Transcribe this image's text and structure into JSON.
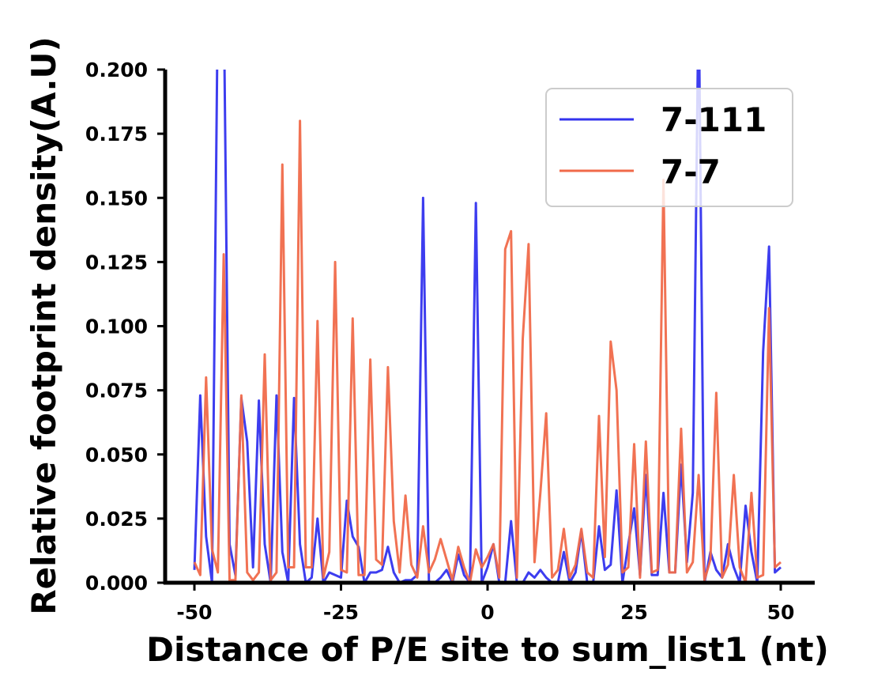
{
  "chart_data": {
    "type": "line",
    "title": "",
    "xlabel": "Distance of P/E site to sum_list1 (nt)",
    "ylabel": "Relative footprint density(A.U)",
    "xlim": [
      -55,
      55
    ],
    "ylim": [
      0,
      0.2
    ],
    "xticks": [
      -50,
      -25,
      0,
      25,
      50
    ],
    "xtick_labels": [
      "-50",
      "-25",
      "0",
      "25",
      "50"
    ],
    "yticks": [
      0,
      0.025,
      0.05,
      0.075,
      0.1,
      0.125,
      0.15,
      0.175,
      0.2
    ],
    "ytick_labels": [
      "0.000",
      "0.025",
      "0.050",
      "0.075",
      "0.100",
      "0.125",
      "0.150",
      "0.175",
      "0.200"
    ],
    "grid": false,
    "legend_position": "top-right",
    "x": [
      -50,
      -49,
      -48,
      -47,
      -46,
      -45,
      -44,
      -43,
      -42,
      -41,
      -40,
      -39,
      -38,
      -37,
      -36,
      -35,
      -34,
      -33,
      -32,
      -31,
      -30,
      -29,
      -28,
      -27,
      -26,
      -25,
      -24,
      -23,
      -22,
      -21,
      -20,
      -19,
      -18,
      -17,
      -16,
      -15,
      -14,
      -13,
      -12,
      -11,
      -10,
      -9,
      -8,
      -7,
      -6,
      -5,
      -4,
      -3,
      -2,
      -1,
      0,
      1,
      2,
      3,
      4,
      5,
      6,
      7,
      8,
      9,
      10,
      11,
      12,
      13,
      14,
      15,
      16,
      17,
      18,
      19,
      20,
      21,
      22,
      23,
      24,
      25,
      26,
      27,
      28,
      29,
      30,
      31,
      32,
      33,
      34,
      35,
      36,
      37,
      38,
      39,
      40,
      41,
      42,
      43,
      44,
      45,
      46,
      47,
      48,
      49,
      50
    ],
    "series": [
      {
        "name": "7-111",
        "color": "#3333ee",
        "values": [
          0.005,
          0.073,
          0.018,
          0,
          0.23,
          0.23,
          0.015,
          0.003,
          0.072,
          0.055,
          0.006,
          0.071,
          0.015,
          0,
          0.073,
          0.012,
          0,
          0.072,
          0.015,
          0,
          0.002,
          0.025,
          0,
          0.004,
          0.003,
          0.002,
          0.032,
          0.018,
          0.014,
          0,
          0.004,
          0.004,
          0.005,
          0.014,
          0.004,
          0,
          0.001,
          0.001,
          0.003,
          0.15,
          0,
          0,
          0.002,
          0.005,
          0,
          0.011,
          0.003,
          0,
          0.148,
          0,
          0.006,
          0.015,
          0,
          0,
          0.024,
          0,
          0,
          0.004,
          0.002,
          0.005,
          0.002,
          0,
          0,
          0.012,
          0,
          0.004,
          0.02,
          0,
          0,
          0.022,
          0.005,
          0.007,
          0.036,
          0,
          0.015,
          0.029,
          0.003,
          0.042,
          0.003,
          0.003,
          0.035,
          0.004,
          0.004,
          0.046,
          0.008,
          0.035,
          0.23,
          0,
          0.012,
          0.005,
          0.002,
          0.015,
          0.006,
          0,
          0.03,
          0.012,
          0,
          0.09,
          0.131,
          0.004,
          0.006
        ]
      },
      {
        "name": "7-7",
        "color": "#f06a4a",
        "values": [
          0.008,
          0.003,
          0.08,
          0.013,
          0.004,
          0.128,
          0.001,
          0.001,
          0.073,
          0.004,
          0.001,
          0.004,
          0.089,
          0.001,
          0.004,
          0.163,
          0.006,
          0.006,
          0.18,
          0.006,
          0.006,
          0.102,
          0.002,
          0.012,
          0.125,
          0.005,
          0.004,
          0.103,
          0.003,
          0.003,
          0.087,
          0.009,
          0.007,
          0.084,
          0.024,
          0.004,
          0.034,
          0.007,
          0.002,
          0.022,
          0.004,
          0.009,
          0.017,
          0.009,
          0.001,
          0.014,
          0.006,
          0,
          0.013,
          0.006,
          0.01,
          0.015,
          0.002,
          0.13,
          0.137,
          0.002,
          0.095,
          0.132,
          0.008,
          0.035,
          0.066,
          0.002,
          0.005,
          0.021,
          0.002,
          0.007,
          0.021,
          0.004,
          0.002,
          0.065,
          0.01,
          0.094,
          0.075,
          0.004,
          0.006,
          0.054,
          0.002,
          0.055,
          0.004,
          0.005,
          0.157,
          0.004,
          0.004,
          0.06,
          0.004,
          0.008,
          0.042,
          0.001,
          0.009,
          0.074,
          0.002,
          0.007,
          0.042,
          0.006,
          0,
          0.035,
          0.002,
          0.003,
          0.107,
          0.006,
          0.008
        ]
      }
    ]
  }
}
